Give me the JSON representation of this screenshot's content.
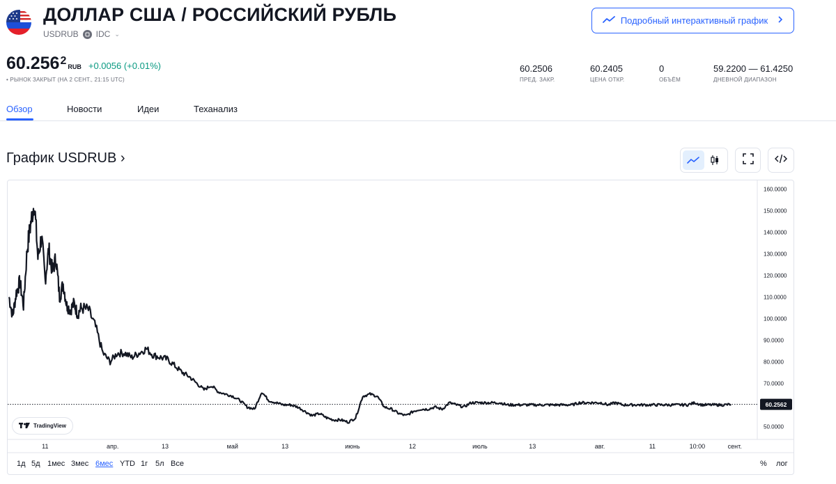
{
  "header": {
    "title": "ДОЛЛАР США / РОССИЙСКИЙ РУБЛЬ",
    "symbol": "USDRUB",
    "exchange": "IDC",
    "detail_button_label": "Подробный интерактивный график",
    "flag_icon": "us-ru-flag-icon"
  },
  "quote": {
    "price_main": "60.256",
    "price_sup": "2",
    "currency": "RUB",
    "change": "+0.0056 (+0.01%)",
    "market_status": "• РЫНОК ЗАКРЫТ (НА 2 СЕНТ., 21:15 UTC)",
    "stats": [
      {
        "value": "60.2506",
        "label": "ПРЕД. ЗАКР."
      },
      {
        "value": "60.2405",
        "label": "ЦЕНА ОТКР."
      },
      {
        "value": "0",
        "label": "ОБЪЁМ"
      },
      {
        "value": "59.2200 — 61.4250",
        "label": "ДНЕВНОЙ ДИАПАЗОН"
      }
    ]
  },
  "tabs": [
    {
      "label": "Обзор",
      "active": true
    },
    {
      "label": "Новости",
      "active": false
    },
    {
      "label": "Идеи",
      "active": false
    },
    {
      "label": "Теханализ",
      "active": false
    }
  ],
  "chart_section": {
    "title": "График USDRUB ›",
    "line_icon": "line-chart-icon",
    "candle_icon": "candlestick-icon",
    "fullscreen_icon": "fullscreen-icon",
    "embed_icon": "embed-code-icon"
  },
  "ranges": [
    {
      "label": "1д",
      "active": false
    },
    {
      "label": "5д",
      "active": false
    },
    {
      "label": "1мес",
      "active": false
    },
    {
      "label": "3мес",
      "active": false
    },
    {
      "label": "6мес",
      "active": true
    },
    {
      "label": "YTD",
      "active": false
    },
    {
      "label": "1г",
      "active": false
    },
    {
      "label": "5л",
      "active": false
    },
    {
      "label": "Все",
      "active": false
    }
  ],
  "chart_options": {
    "percent": "%",
    "log": "лог"
  },
  "tradingview_label": "TradingView",
  "colors": {
    "accent": "#2962ff",
    "positive": "#089981",
    "line": "#131722",
    "last_price_badge": "#131722"
  },
  "chart_data": {
    "type": "line",
    "title": "",
    "xlabel": "",
    "ylabel": "",
    "ylim": [
      44,
      164
    ],
    "y_ticks": [
      "160.0000",
      "150.0000",
      "140.0000",
      "130.0000",
      "120.0000",
      "110.0000",
      "100.0000",
      "90.0000",
      "80.0000",
      "70.0000",
      "60.0000",
      "50.0000"
    ],
    "y_tick_values": [
      160,
      150,
      140,
      130,
      120,
      110,
      100,
      90,
      80,
      70,
      60,
      50
    ],
    "x_tick_labels": [
      "11",
      "апр.",
      "13",
      "май",
      "13",
      "июнь",
      "12",
      "июль",
      "13",
      "авг.",
      "11",
      "10:00",
      "сент."
    ],
    "x_tick_index": [
      0.05,
      0.14,
      0.21,
      0.3,
      0.37,
      0.46,
      0.54,
      0.63,
      0.7,
      0.79,
      0.86,
      0.92,
      0.97
    ],
    "last_price": 60.2562,
    "last_price_label": "60.2562",
    "grid": false,
    "series": [
      {
        "x": [
          0,
          0.005,
          0.01,
          0.015,
          0.02,
          0.025,
          0.03,
          0.035,
          0.04,
          0.045,
          0.05,
          0.055,
          0.06,
          0.065,
          0.07,
          0.075,
          0.08,
          0.085,
          0.09,
          0.095,
          0.1,
          0.11,
          0.12,
          0.13,
          0.14,
          0.15,
          0.16,
          0.17,
          0.18,
          0.19,
          0.2,
          0.21,
          0.22,
          0.23,
          0.24,
          0.25,
          0.26,
          0.27,
          0.28,
          0.29,
          0.3,
          0.31,
          0.32,
          0.33,
          0.34,
          0.35,
          0.36,
          0.37,
          0.38,
          0.39,
          0.4,
          0.41,
          0.42,
          0.43,
          0.44,
          0.45,
          0.46,
          0.47,
          0.48,
          0.49,
          0.5,
          0.51,
          0.52,
          0.53,
          0.54,
          0.55,
          0.56,
          0.57,
          0.58,
          0.59,
          0.6,
          0.61,
          0.62,
          0.63,
          0.64,
          0.65,
          0.66,
          0.67,
          0.68,
          0.69,
          0.7,
          0.71,
          0.72,
          0.73,
          0.74,
          0.75,
          0.76,
          0.77,
          0.78,
          0.79,
          0.8,
          0.81,
          0.82,
          0.83,
          0.84,
          0.85,
          0.86,
          0.87,
          0.88,
          0.89,
          0.9,
          0.91,
          0.92,
          0.93,
          0.94,
          0.95,
          0.96,
          0.97,
          0.98,
          0.99,
          1.0
        ],
        "values": [
          110,
          101,
          112,
          117,
          106,
          132,
          144,
          154,
          128,
          138,
          118,
          132,
          122,
          128,
          110,
          116,
          106,
          104,
          107,
          102,
          105,
          104,
          96,
          84,
          80,
          84,
          84,
          82,
          84,
          86,
          83,
          82,
          81,
          78,
          75,
          73,
          70,
          67,
          69,
          66,
          65,
          64,
          62,
          59,
          58,
          66,
          62,
          61,
          60,
          60,
          59,
          57,
          55,
          56,
          54,
          53,
          53,
          52,
          54,
          64,
          65,
          64,
          59,
          58,
          56,
          55,
          57,
          58,
          58,
          59,
          58,
          61,
          60,
          59,
          61,
          61,
          61,
          61,
          61,
          60,
          60,
          60,
          60,
          60,
          60,
          60,
          60,
          60,
          60,
          61,
          61,
          61,
          61,
          60,
          61,
          60,
          60,
          60,
          60,
          60,
          60,
          60,
          60,
          60,
          60,
          61,
          60,
          60,
          60,
          60,
          60.26
        ]
      }
    ]
  }
}
